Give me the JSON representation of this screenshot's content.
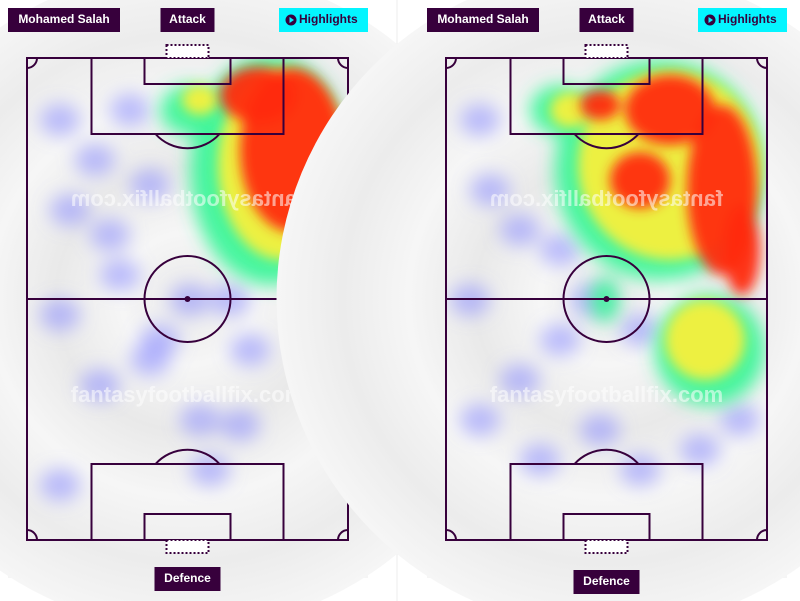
{
  "panels": [
    {
      "player": "Mohamed Salah",
      "top_label": "Attack",
      "button": "Highlights",
      "bottom_label": "Defence",
      "watermark_upper": "fantasyfootballfix.com",
      "watermark_lower": "fantasyfootballfix.com"
    },
    {
      "player": "Mohamed Salah",
      "top_label": "Attack",
      "button": "Highlights",
      "bottom_label": "Defence",
      "watermark_upper": "fantasyfootballfix.com",
      "watermark_lower": "fantasyfootballfix.com"
    }
  ]
}
